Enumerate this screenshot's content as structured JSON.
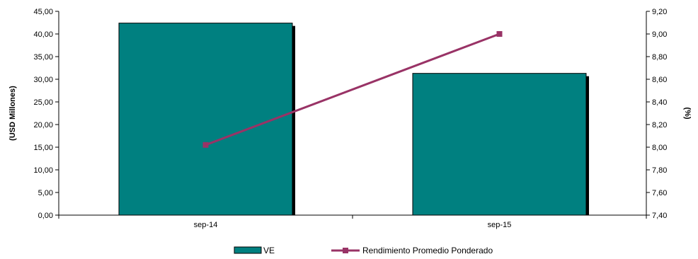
{
  "chart_data": {
    "type": "bar",
    "categories": [
      "sep-14",
      "sep-15"
    ],
    "series": [
      {
        "name": "VE",
        "type": "bar",
        "axis": "left",
        "values": [
          42.4,
          31.3
        ],
        "color": "#008080"
      },
      {
        "name": "Rendimiento Promedio Ponderado",
        "type": "line",
        "axis": "right",
        "values": [
          8.02,
          9.0
        ],
        "color": "#993366"
      }
    ],
    "ylabel": "(USD Millones)",
    "y2label": "(%)",
    "ylim": [
      0,
      45
    ],
    "y2lim": [
      7.4,
      9.2
    ],
    "yticks": [
      "0,00",
      "5,00",
      "10,00",
      "15,00",
      "20,00",
      "25,00",
      "30,00",
      "35,00",
      "40,00",
      "45,00"
    ],
    "y2ticks": [
      "7,40",
      "7,60",
      "7,80",
      "8,00",
      "8,20",
      "8,40",
      "8,60",
      "8,80",
      "9,00",
      "9,20"
    ],
    "legend": "bottom",
    "grid": false
  }
}
